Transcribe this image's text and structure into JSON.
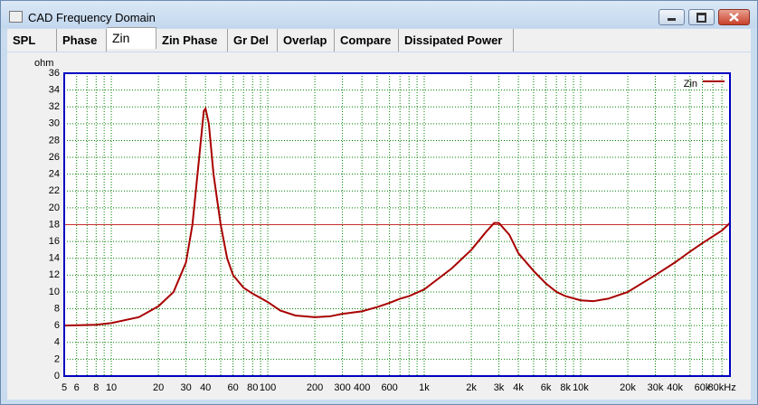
{
  "window": {
    "title": "CAD Frequency Domain"
  },
  "tabs": [
    "SPL",
    "Phase",
    "Zin",
    "Zin Phase",
    "Gr Del",
    "Overlap",
    "Compare",
    "Dissipated Power"
  ],
  "selected_tab": 2,
  "chart_data": {
    "type": "line",
    "y_label": "ohm",
    "log_x": true,
    "grid": true,
    "legend": "upper right",
    "x": [
      5,
      8,
      10,
      15,
      20,
      25,
      30,
      33,
      36,
      39,
      40,
      42,
      45,
      50,
      55,
      60,
      70,
      80,
      100,
      120,
      150,
      200,
      250,
      300,
      400,
      500,
      600,
      700,
      800,
      1000,
      1500,
      2000,
      2500,
      2800,
      3000,
      3500,
      4000,
      5000,
      6000,
      7000,
      8000,
      10000,
      12000,
      15000,
      20000,
      30000,
      40000,
      50000,
      60000,
      80000,
      90000
    ],
    "series": [
      {
        "name": "Zin",
        "color": "#a80000",
        "values": [
          6.0,
          6.1,
          6.3,
          7.0,
          8.3,
          10.0,
          13.5,
          18,
          25,
          31.5,
          31.8,
          30,
          24,
          18,
          14,
          12,
          10.5,
          9.8,
          8.8,
          7.8,
          7.2,
          7.0,
          7.1,
          7.4,
          7.7,
          8.2,
          8.7,
          9.2,
          9.5,
          10.3,
          12.8,
          15.0,
          17.2,
          18.2,
          18.2,
          16.8,
          14.6,
          12.5,
          11,
          10,
          9.5,
          9.0,
          8.9,
          9.2,
          10.0,
          12.0,
          13.5,
          14.8,
          15.8,
          17.3,
          18.2
        ]
      }
    ],
    "reference_line": {
      "value": 18,
      "color": "#c83030"
    },
    "xlim": [
      5,
      90000
    ],
    "ylim": [
      0,
      36
    ],
    "yticks": [
      0,
      2,
      4,
      6,
      8,
      10,
      12,
      14,
      16,
      18,
      20,
      22,
      24,
      26,
      28,
      30,
      32,
      34,
      36
    ],
    "xticks": [
      5,
      6,
      8,
      10,
      20,
      30,
      40,
      60,
      80,
      100,
      200,
      300,
      400,
      600,
      {
        "value": 1000,
        "label": "1k"
      },
      {
        "value": 2000,
        "label": "2k"
      },
      {
        "value": 3000,
        "label": "3k"
      },
      {
        "value": 4000,
        "label": "4k"
      },
      {
        "value": 6000,
        "label": "6k"
      },
      {
        "value": 8000,
        "label": "8k"
      },
      {
        "value": 10000,
        "label": "10k"
      },
      {
        "value": 20000,
        "label": "20k"
      },
      {
        "value": 30000,
        "label": "30k"
      },
      {
        "value": 40000,
        "label": "40k"
      },
      {
        "value": 60000,
        "label": "60k"
      },
      {
        "value": 80000,
        "label": "80kHz"
      }
    ],
    "xgrid_minor": [
      7,
      9,
      50,
      70,
      90,
      500,
      700,
      800,
      900,
      5000,
      7000,
      9000,
      50000,
      70000
    ]
  }
}
